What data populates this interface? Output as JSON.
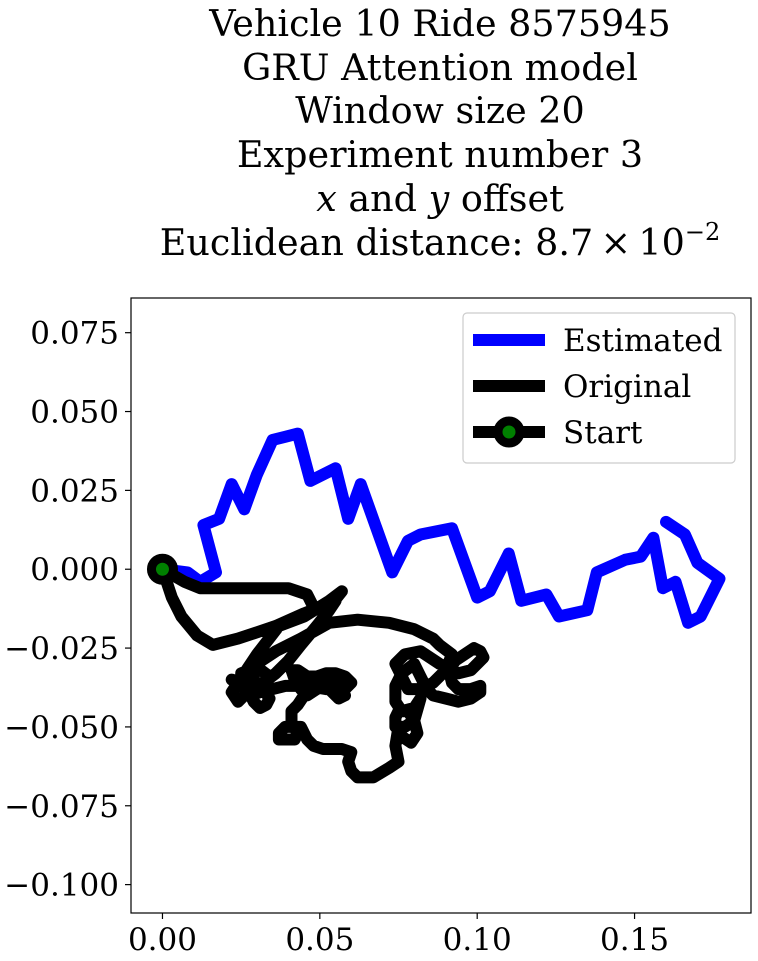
{
  "title_lines": {
    "line1": "Vehicle 10 Ride 8575945",
    "line2": "GRU Attention model",
    "line3": "Window size 20",
    "line4": "Experiment number 3",
    "line5_x": "x",
    "line5_and": " and ",
    "line5_y": "y",
    "line5_rest": " offset",
    "line6_prefix": "Euclidean distance: 8.7 × 10",
    "line6_exp": "−2"
  },
  "chart_data": {
    "type": "line",
    "title": "Vehicle 10 Ride 8575945\nGRU Attention model\nWindow size 20\nExperiment number 3\nx and y offset\nEuclidean distance: 8.7 × 10^-2",
    "xlabel": "",
    "ylabel": "",
    "xlim": [
      -0.01,
      0.187
    ],
    "ylim": [
      -0.109,
      0.086
    ],
    "x_ticks": [
      0.0,
      0.05,
      0.1,
      0.15
    ],
    "x_tick_labels": [
      "0.00",
      "0.05",
      "0.10",
      "0.15"
    ],
    "y_ticks": [
      0.075,
      0.05,
      0.025,
      0.0,
      -0.025,
      -0.05,
      -0.075,
      -0.1
    ],
    "y_tick_labels": [
      "0.075",
      "0.050",
      "0.025",
      "0.000",
      "−0.025",
      "−0.050",
      "−0.075",
      "−0.100"
    ],
    "grid": false,
    "legend_position": "top-right",
    "legend": [
      "Estimated",
      "Original",
      "Start"
    ],
    "series": [
      {
        "name": "Estimated",
        "color": "#0000ff",
        "points": [
          [
            0.0,
            0.0
          ],
          [
            0.008,
            -0.001
          ],
          [
            0.012,
            -0.004
          ],
          [
            0.017,
            -0.001
          ],
          [
            0.013,
            0.014
          ],
          [
            0.018,
            0.016
          ],
          [
            0.022,
            0.027
          ],
          [
            0.026,
            0.019
          ],
          [
            0.03,
            0.03
          ],
          [
            0.035,
            0.041
          ],
          [
            0.039,
            0.042
          ],
          [
            0.043,
            0.043
          ],
          [
            0.047,
            0.028
          ],
          [
            0.055,
            0.032
          ],
          [
            0.059,
            0.016
          ],
          [
            0.063,
            0.027
          ],
          [
            0.073,
            -0.001
          ],
          [
            0.078,
            0.009
          ],
          [
            0.082,
            0.011
          ],
          [
            0.092,
            0.013
          ],
          [
            0.1,
            -0.009
          ],
          [
            0.104,
            -0.007
          ],
          [
            0.11,
            0.005
          ],
          [
            0.114,
            -0.01
          ],
          [
            0.122,
            -0.008
          ],
          [
            0.126,
            -0.015
          ],
          [
            0.135,
            -0.013
          ],
          [
            0.138,
            -0.001
          ],
          [
            0.147,
            0.003
          ],
          [
            0.152,
            0.004
          ],
          [
            0.156,
            0.01
          ],
          [
            0.159,
            -0.006
          ],
          [
            0.163,
            -0.004
          ],
          [
            0.167,
            -0.017
          ],
          [
            0.171,
            -0.015
          ],
          [
            0.177,
            -0.003
          ],
          [
            0.17,
            0.002
          ],
          [
            0.166,
            0.011
          ],
          [
            0.16,
            0.015
          ]
        ]
      },
      {
        "name": "Original",
        "color": "#000000",
        "points": [
          [
            0.0,
            0.0
          ],
          [
            0.007,
            -0.004
          ],
          [
            0.012,
            -0.006
          ],
          [
            0.022,
            -0.006
          ],
          [
            0.04,
            -0.006
          ],
          [
            0.046,
            -0.008
          ],
          [
            0.048,
            -0.012
          ],
          [
            0.053,
            -0.012
          ],
          [
            0.057,
            -0.007
          ],
          [
            0.053,
            -0.01
          ],
          [
            0.045,
            -0.015
          ],
          [
            0.037,
            -0.018
          ],
          [
            0.03,
            -0.027
          ],
          [
            0.026,
            -0.033
          ],
          [
            0.022,
            -0.039
          ],
          [
            0.024,
            -0.042
          ],
          [
            0.028,
            -0.038
          ],
          [
            0.03,
            -0.03
          ],
          [
            0.036,
            -0.026
          ],
          [
            0.044,
            -0.022
          ],
          [
            0.053,
            -0.017
          ],
          [
            0.062,
            -0.016
          ],
          [
            0.072,
            -0.017
          ],
          [
            0.08,
            -0.019
          ],
          [
            0.086,
            -0.022
          ],
          [
            0.088,
            -0.024
          ],
          [
            0.092,
            -0.027
          ],
          [
            0.09,
            -0.032
          ],
          [
            0.086,
            -0.036
          ],
          [
            0.082,
            -0.038
          ],
          [
            0.078,
            -0.038
          ],
          [
            0.076,
            -0.034
          ],
          [
            0.074,
            -0.03
          ],
          [
            0.077,
            -0.027
          ],
          [
            0.082,
            -0.026
          ],
          [
            0.088,
            -0.03
          ],
          [
            0.094,
            -0.033
          ],
          [
            0.098,
            -0.032
          ],
          [
            0.102,
            -0.028
          ],
          [
            0.101,
            -0.026
          ],
          [
            0.099,
            -0.025
          ],
          [
            0.096,
            -0.027
          ],
          [
            0.093,
            -0.029
          ],
          [
            0.091,
            -0.032
          ],
          [
            0.092,
            -0.036
          ],
          [
            0.094,
            -0.038
          ],
          [
            0.098,
            -0.038
          ],
          [
            0.101,
            -0.037
          ],
          [
            0.101,
            -0.039
          ],
          [
            0.098,
            -0.041
          ],
          [
            0.094,
            -0.042
          ],
          [
            0.09,
            -0.041
          ],
          [
            0.086,
            -0.04
          ],
          [
            0.084,
            -0.038
          ],
          [
            0.082,
            -0.034
          ],
          [
            0.08,
            -0.03
          ],
          [
            0.076,
            -0.033
          ],
          [
            0.074,
            -0.037
          ],
          [
            0.074,
            -0.042
          ],
          [
            0.076,
            -0.045
          ],
          [
            0.08,
            -0.044
          ],
          [
            0.082,
            -0.041
          ],
          [
            0.08,
            -0.048
          ],
          [
            0.077,
            -0.05
          ],
          [
            0.074,
            -0.05
          ],
          [
            0.074,
            -0.047
          ],
          [
            0.075,
            -0.045
          ],
          [
            0.078,
            -0.045
          ],
          [
            0.08,
            -0.048
          ],
          [
            0.081,
            -0.052
          ],
          [
            0.079,
            -0.055
          ],
          [
            0.076,
            -0.053
          ],
          [
            0.075,
            -0.05
          ],
          [
            0.074,
            -0.056
          ],
          [
            0.075,
            -0.061
          ],
          [
            0.072,
            -0.063
          ],
          [
            0.067,
            -0.066
          ],
          [
            0.062,
            -0.066
          ],
          [
            0.06,
            -0.064
          ],
          [
            0.059,
            -0.061
          ],
          [
            0.06,
            -0.058
          ],
          [
            0.057,
            -0.057
          ],
          [
            0.051,
            -0.057
          ],
          [
            0.048,
            -0.056
          ],
          [
            0.046,
            -0.054
          ],
          [
            0.044,
            -0.05
          ],
          [
            0.039,
            -0.05
          ],
          [
            0.037,
            -0.052
          ],
          [
            0.037,
            -0.054
          ],
          [
            0.042,
            -0.054
          ],
          [
            0.043,
            -0.052
          ],
          [
            0.041,
            -0.049
          ],
          [
            0.041,
            -0.045
          ],
          [
            0.043,
            -0.043
          ],
          [
            0.045,
            -0.04
          ],
          [
            0.047,
            -0.038
          ],
          [
            0.049,
            -0.037
          ],
          [
            0.052,
            -0.036
          ],
          [
            0.055,
            -0.036
          ],
          [
            0.057,
            -0.038
          ],
          [
            0.058,
            -0.04
          ],
          [
            0.056,
            -0.041
          ],
          [
            0.054,
            -0.039
          ],
          [
            0.052,
            -0.037
          ],
          [
            0.049,
            -0.038
          ],
          [
            0.046,
            -0.04
          ],
          [
            0.044,
            -0.038
          ],
          [
            0.042,
            -0.035
          ],
          [
            0.041,
            -0.032
          ],
          [
            0.043,
            -0.032
          ],
          [
            0.046,
            -0.034
          ],
          [
            0.049,
            -0.034
          ],
          [
            0.052,
            -0.033
          ],
          [
            0.055,
            -0.033
          ],
          [
            0.058,
            -0.034
          ],
          [
            0.06,
            -0.036
          ],
          [
            0.058,
            -0.038
          ],
          [
            0.052,
            -0.038
          ],
          [
            0.046,
            -0.037
          ],
          [
            0.039,
            -0.037
          ],
          [
            0.035,
            -0.038
          ],
          [
            0.031,
            -0.039
          ],
          [
            0.028,
            -0.04
          ],
          [
            0.026,
            -0.038
          ],
          [
            0.024,
            -0.036
          ],
          [
            0.022,
            -0.035
          ],
          [
            0.025,
            -0.036
          ],
          [
            0.029,
            -0.036
          ],
          [
            0.032,
            -0.038
          ],
          [
            0.034,
            -0.041
          ],
          [
            0.033,
            -0.043
          ],
          [
            0.031,
            -0.044
          ],
          [
            0.029,
            -0.042
          ],
          [
            0.028,
            -0.04
          ],
          [
            0.031,
            -0.037
          ],
          [
            0.034,
            -0.034
          ],
          [
            0.03,
            -0.031
          ],
          [
            0.025,
            -0.033
          ],
          [
            0.025,
            -0.036
          ],
          [
            0.028,
            -0.037
          ],
          [
            0.032,
            -0.036
          ],
          [
            0.036,
            -0.033
          ],
          [
            0.04,
            -0.029
          ],
          [
            0.044,
            -0.024
          ],
          [
            0.049,
            -0.018
          ],
          [
            0.053,
            -0.013
          ],
          [
            0.055,
            -0.01
          ],
          [
            0.045,
            -0.014
          ],
          [
            0.036,
            -0.018
          ],
          [
            0.024,
            -0.022
          ],
          [
            0.016,
            -0.024
          ],
          [
            0.011,
            -0.021
          ],
          [
            0.006,
            -0.015
          ],
          [
            0.003,
            -0.009
          ],
          [
            0.0,
            0.0
          ]
        ]
      }
    ],
    "start_marker": {
      "name": "Start",
      "x": 0.0,
      "y": 0.0,
      "edge_color": "#000000",
      "face_color": "#008000"
    }
  },
  "legend_labels": {
    "estimated": "Estimated",
    "original": "Original",
    "start": "Start"
  }
}
